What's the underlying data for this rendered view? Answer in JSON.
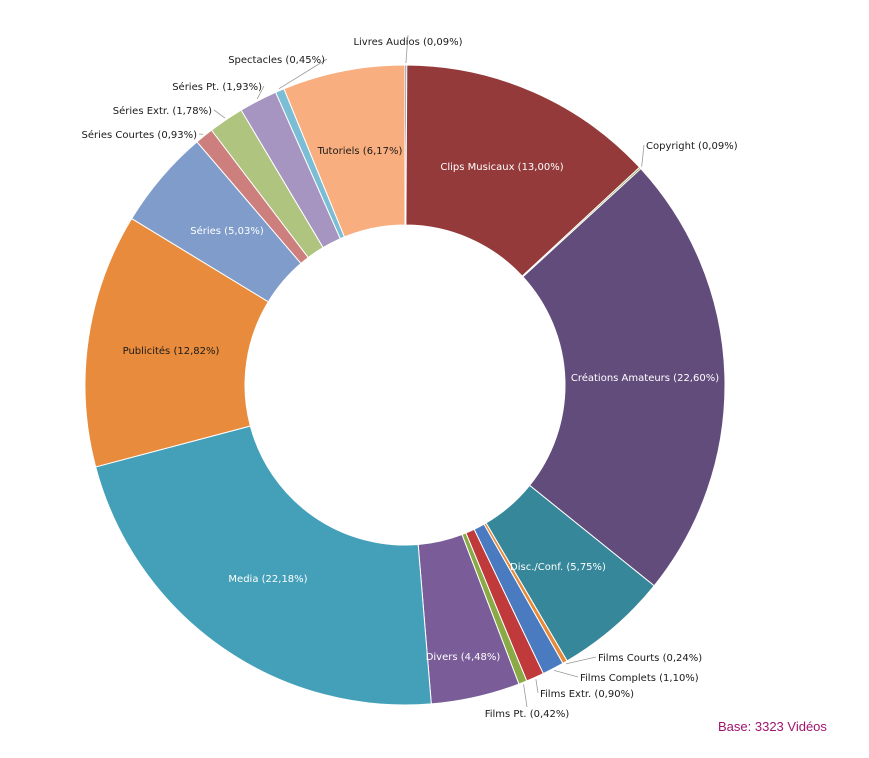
{
  "chart_data": {
    "type": "pie",
    "variant": "donut",
    "title": "",
    "base_note": "Base: 3323 Vidéos",
    "slices": [
      {
        "label": "Livres Audios (0,09%)",
        "value": 0.09,
        "color": "#4a6890"
      },
      {
        "label": "Clips Musicaux (13,00%)",
        "value": 13.0,
        "color": "#953a3a"
      },
      {
        "label": "Copyright (0,09%)",
        "value": 0.09,
        "color": "#7a9a3a"
      },
      {
        "label": "Créations Amateurs (22,60%)",
        "value": 22.6,
        "color": "#624c7c"
      },
      {
        "label": "Disc./Conf. (5,75%)",
        "value": 5.75,
        "color": "#36879a"
      },
      {
        "label": "Films Courts (0,24%)",
        "value": 0.24,
        "color": "#e68a3a"
      },
      {
        "label": "Films Complets (1,10%)",
        "value": 1.1,
        "color": "#4a7abf"
      },
      {
        "label": "Films Extr. (0,90%)",
        "value": 0.9,
        "color": "#c0393b"
      },
      {
        "label": "Films Pt. (0,42%)",
        "value": 0.42,
        "color": "#8aaa46"
      },
      {
        "label": "Divers (4,48%)",
        "value": 4.48,
        "color": "#7a5c98"
      },
      {
        "label": "Media (22,18%)",
        "value": 22.18,
        "color": "#44a0b8"
      },
      {
        "label": "Publicités (12,82%)",
        "value": 12.82,
        "color": "#e88b3c"
      },
      {
        "label": "Séries (5,03%)",
        "value": 5.03,
        "color": "#7f9cca"
      },
      {
        "label": "Séries Courtes (0,93%)",
        "value": 0.93,
        "color": "#cd7f7d"
      },
      {
        "label": "Séries Extr. (1,78%)",
        "value": 1.78,
        "color": "#aec47f"
      },
      {
        "label": "Séries Pt. (1,93%)",
        "value": 1.93,
        "color": "#a695c0"
      },
      {
        "label": "Spectacles (0,45%)",
        "value": 0.45,
        "color": "#7bbdd5"
      },
      {
        "label": "Tutoriels (6,17%)",
        "value": 6.17,
        "color": "#f8ae7e"
      }
    ]
  }
}
